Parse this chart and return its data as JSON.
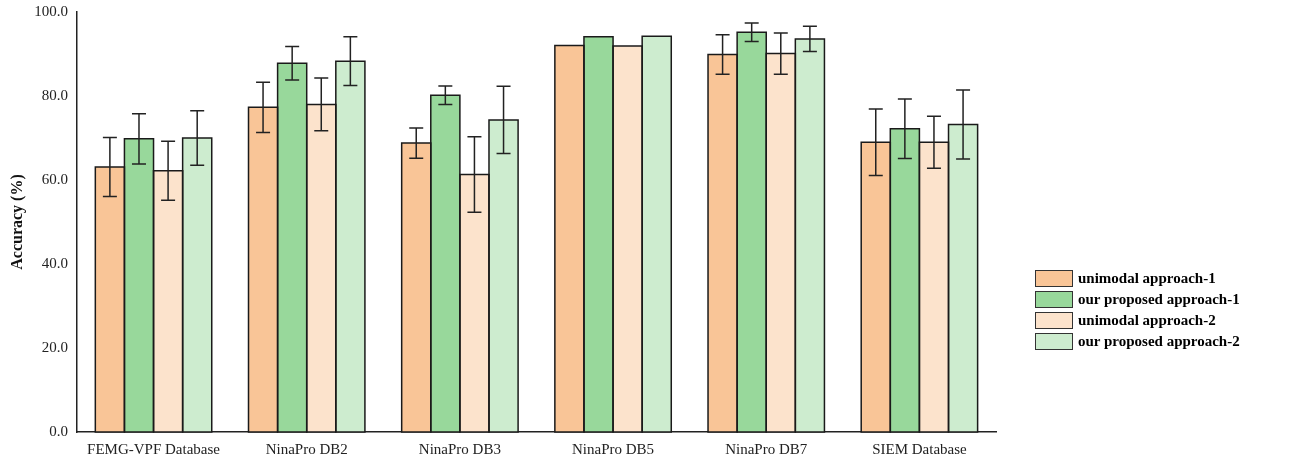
{
  "chart_data": {
    "type": "bar",
    "ylabel": "Accuracy (%)",
    "categories": [
      "FEMG-VPF Database",
      "NinaPro DB2",
      "NinaPro DB3",
      "NinaPro DB5",
      "NinaPro DB7",
      "SIEM Database"
    ],
    "series": [
      {
        "name": "unimodal approach-1",
        "color": "#f9c597",
        "values": [
          63.1,
          77.3,
          68.8,
          92.0,
          89.9,
          69.0
        ],
        "errors": [
          7.0,
          6.0,
          3.6,
          null,
          4.7,
          7.9
        ]
      },
      {
        "name": "our proposed approach-1",
        "color": "#98d89b",
        "values": [
          69.8,
          87.8,
          80.2,
          94.1,
          95.2,
          72.2
        ],
        "errors": [
          6.0,
          4.0,
          2.2,
          null,
          2.2,
          7.1
        ]
      },
      {
        "name": "unimodal approach-2",
        "color": "#fce3cc",
        "values": [
          62.2,
          78.0,
          61.3,
          91.9,
          90.1,
          69.0
        ],
        "errors": [
          7.0,
          6.3,
          9.0,
          null,
          4.9,
          6.2
        ]
      },
      {
        "name": "our proposed approach-2",
        "color": "#cdeccf",
        "values": [
          70.0,
          88.3,
          74.3,
          94.2,
          93.6,
          73.2
        ],
        "errors": [
          6.5,
          5.8,
          8.0,
          null,
          3.0,
          8.2
        ]
      }
    ],
    "ylim": [
      0,
      100
    ],
    "yticks": [
      {
        "value": 0,
        "label": "0.0"
      },
      {
        "value": 20,
        "label": "20.0"
      },
      {
        "value": 40,
        "label": "40.0"
      },
      {
        "value": 60,
        "label": "60.0"
      },
      {
        "value": 80,
        "label": "80.0"
      },
      {
        "value": 100,
        "label": "100.0"
      }
    ],
    "grid": false,
    "legend": "right"
  }
}
